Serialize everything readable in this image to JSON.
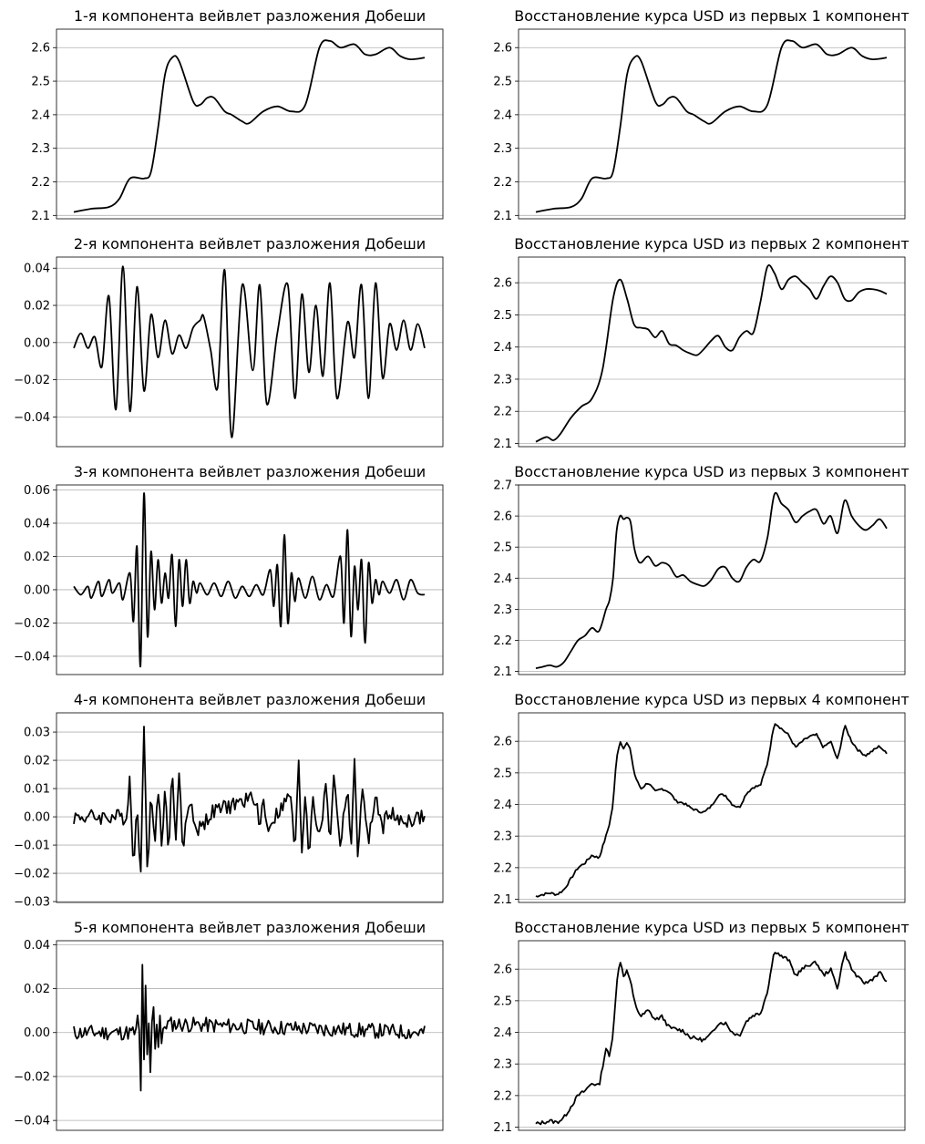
{
  "chart_data": [
    {
      "type": "line",
      "title": "1-я компонента вейвлет разложения Добеши",
      "ylim": [
        2.09,
        2.655
      ],
      "yticks": [
        2.1,
        2.2,
        2.3,
        2.4,
        2.5,
        2.6
      ],
      "ytick_labels": [
        "2.1",
        "2.2",
        "2.3",
        "2.4",
        "2.5",
        "2.6"
      ],
      "grid": "y",
      "x_ticks": "none",
      "noise": 0,
      "x": [
        0,
        5,
        10,
        13,
        16,
        20,
        22,
        24,
        26,
        28,
        30,
        34,
        36,
        38,
        40,
        43,
        45,
        48,
        50,
        54,
        58,
        62,
        66,
        70,
        73,
        76,
        80,
        83,
        86,
        90,
        93,
        96,
        100
      ],
      "y": [
        2.11,
        2.12,
        2.125,
        2.15,
        2.21,
        2.21,
        2.23,
        2.36,
        2.52,
        2.57,
        2.56,
        2.44,
        2.43,
        2.45,
        2.45,
        2.41,
        2.4,
        2.38,
        2.375,
        2.41,
        2.425,
        2.41,
        2.43,
        2.6,
        2.62,
        2.6,
        2.61,
        2.58,
        2.58,
        2.6,
        2.575,
        2.565,
        2.57
      ]
    },
    {
      "type": "line",
      "title": "Восстановление курса USD из первых 1 компонент",
      "ylim": [
        2.09,
        2.655
      ],
      "yticks": [
        2.1,
        2.2,
        2.3,
        2.4,
        2.5,
        2.6
      ],
      "ytick_labels": [
        "2.1",
        "2.2",
        "2.3",
        "2.4",
        "2.5",
        "2.6"
      ],
      "grid": "y",
      "x_ticks": "none",
      "noise": 0,
      "x": [
        0,
        5,
        10,
        13,
        16,
        20,
        22,
        24,
        26,
        28,
        30,
        34,
        36,
        38,
        40,
        43,
        45,
        48,
        50,
        54,
        58,
        62,
        66,
        70,
        73,
        76,
        80,
        83,
        86,
        90,
        93,
        96,
        100
      ],
      "y": [
        2.11,
        2.12,
        2.125,
        2.15,
        2.21,
        2.21,
        2.23,
        2.36,
        2.52,
        2.57,
        2.56,
        2.44,
        2.43,
        2.45,
        2.45,
        2.41,
        2.4,
        2.38,
        2.375,
        2.41,
        2.425,
        2.41,
        2.43,
        2.6,
        2.62,
        2.6,
        2.61,
        2.58,
        2.58,
        2.6,
        2.575,
        2.565,
        2.57
      ]
    },
    {
      "type": "line",
      "title": "2-я компонента вейвлет разложения Добеши",
      "ylim": [
        -0.056,
        0.046
      ],
      "yticks": [
        -0.04,
        -0.02,
        0.0,
        0.02,
        0.04
      ],
      "ytick_labels": [
        "−0.04",
        "−0.02",
        "0.00",
        "0.02",
        "0.04"
      ],
      "grid": "y",
      "x_ticks": "none",
      "noise": 0,
      "x": [
        0,
        2,
        4,
        6,
        8,
        10,
        12,
        14,
        16,
        18,
        20,
        22,
        24,
        26,
        28,
        30,
        32,
        34,
        36,
        37,
        39,
        41,
        43,
        45,
        48,
        51,
        53,
        55,
        58,
        61,
        63,
        65,
        67,
        69,
        71,
        73,
        75,
        78,
        80,
        82,
        84,
        86,
        88,
        90,
        92,
        94,
        96,
        98,
        100
      ],
      "y": [
        -0.003,
        0.005,
        -0.003,
        0.003,
        -0.013,
        0.025,
        -0.036,
        0.041,
        -0.037,
        0.03,
        -0.026,
        0.015,
        -0.008,
        0.012,
        -0.006,
        0.004,
        -0.003,
        0.008,
        0.012,
        0.014,
        -0.004,
        -0.024,
        0.039,
        -0.051,
        0.031,
        -0.015,
        0.031,
        -0.033,
        0.005,
        0.031,
        -0.03,
        0.026,
        -0.016,
        0.02,
        -0.018,
        0.032,
        -0.03,
        0.011,
        -0.008,
        0.031,
        -0.03,
        0.032,
        -0.019,
        0.01,
        -0.004,
        0.012,
        -0.004,
        0.01,
        -0.003
      ]
    },
    {
      "type": "line",
      "title": "Восстановление курса USD из первых 2 компонент",
      "ylim": [
        2.09,
        2.68
      ],
      "yticks": [
        2.1,
        2.2,
        2.3,
        2.4,
        2.5,
        2.6
      ],
      "ytick_labels": [
        "2.1",
        "2.2",
        "2.3",
        "2.4",
        "2.5",
        "2.6"
      ],
      "grid": "y",
      "x_ticks": "none",
      "noise": 0,
      "x": [
        0,
        3,
        5,
        7,
        10,
        13,
        16,
        19,
        22,
        24,
        26,
        28,
        30,
        32,
        34,
        36,
        38,
        40,
        42,
        44,
        46,
        48,
        50,
        52,
        54,
        56,
        58,
        60,
        62,
        64,
        66,
        68,
        70,
        72,
        74,
        76,
        78,
        80,
        82,
        84,
        86,
        88,
        90,
        92,
        94,
        96,
        98,
        100
      ],
      "y": [
        2.105,
        2.12,
        2.11,
        2.13,
        2.18,
        2.215,
        2.24,
        2.33,
        2.55,
        2.61,
        2.55,
        2.47,
        2.46,
        2.455,
        2.43,
        2.45,
        2.41,
        2.405,
        2.39,
        2.38,
        2.375,
        2.395,
        2.42,
        2.435,
        2.4,
        2.39,
        2.43,
        2.45,
        2.445,
        2.54,
        2.65,
        2.63,
        2.58,
        2.61,
        2.62,
        2.6,
        2.58,
        2.55,
        2.59,
        2.62,
        2.6,
        2.55,
        2.545,
        2.57,
        2.58,
        2.58,
        2.575,
        2.565
      ]
    },
    {
      "type": "line",
      "title": "3-я компонента вейвлет разложения Добеши",
      "ylim": [
        -0.051,
        0.063
      ],
      "yticks": [
        -0.04,
        -0.02,
        0.0,
        0.02,
        0.04,
        0.06
      ],
      "ytick_labels": [
        "−0.04",
        "−0.02",
        "0.00",
        "0.02",
        "0.04",
        "0.06"
      ],
      "grid": "y",
      "x_ticks": "none",
      "noise": 0,
      "x": [
        0,
        2,
        4,
        5,
        7,
        8,
        10,
        11,
        13,
        14,
        16,
        17,
        18,
        19,
        20,
        21,
        22,
        23,
        24,
        25,
        26,
        27,
        28,
        29,
        30,
        31,
        32,
        33,
        34,
        35,
        36,
        38,
        40,
        42,
        44,
        46,
        48,
        50,
        52,
        54,
        56,
        57,
        58,
        59,
        60,
        61,
        62,
        63,
        64,
        66,
        68,
        70,
        72,
        74,
        76,
        77,
        78,
        79,
        80,
        81,
        82,
        83,
        84,
        85,
        86,
        87,
        88,
        90,
        92,
        94,
        96,
        98,
        100
      ],
      "y": [
        0.002,
        -0.003,
        0.002,
        -0.005,
        0.005,
        -0.004,
        0.006,
        -0.002,
        0.004,
        -0.006,
        0.01,
        -0.019,
        0.026,
        -0.046,
        0.058,
        -0.028,
        0.023,
        -0.012,
        0.018,
        -0.008,
        0.01,
        -0.005,
        0.021,
        -0.022,
        0.018,
        -0.01,
        0.018,
        -0.008,
        0.005,
        -0.002,
        0.004,
        -0.003,
        0.004,
        -0.004,
        0.005,
        -0.005,
        0.002,
        -0.004,
        0.003,
        -0.003,
        0.012,
        -0.01,
        0.015,
        -0.022,
        0.033,
        -0.02,
        0.01,
        -0.007,
        0.007,
        -0.005,
        0.008,
        -0.006,
        0.003,
        -0.004,
        0.02,
        -0.02,
        0.036,
        -0.028,
        0.014,
        -0.012,
        0.018,
        -0.032,
        0.016,
        -0.008,
        0.006,
        -0.003,
        0.005,
        -0.002,
        0.006,
        -0.006,
        0.006,
        -0.002,
        -0.003
      ]
    },
    {
      "type": "line",
      "title": "Восстановление курса USD из первых 3 компонент",
      "ylim": [
        2.09,
        2.7
      ],
      "yticks": [
        2.1,
        2.2,
        2.3,
        2.4,
        2.5,
        2.6,
        2.7
      ],
      "ytick_labels": [
        "2.1",
        "2.2",
        "2.3",
        "2.4",
        "2.5",
        "2.6",
        "2.7"
      ],
      "grid": "y",
      "x_ticks": "none",
      "noise": 0,
      "x": [
        0,
        2,
        4,
        6,
        8,
        10,
        12,
        14,
        16,
        18,
        20,
        21,
        22,
        23,
        24,
        25,
        26,
        27,
        28,
        29,
        30,
        32,
        34,
        36,
        38,
        40,
        42,
        44,
        46,
        48,
        50,
        52,
        54,
        56,
        58,
        60,
        62,
        64,
        66,
        68,
        70,
        72,
        74,
        76,
        78,
        80,
        82,
        84,
        86,
        88,
        90,
        92,
        94,
        96,
        98,
        100
      ],
      "y": [
        2.11,
        2.115,
        2.12,
        2.115,
        2.13,
        2.165,
        2.2,
        2.215,
        2.24,
        2.23,
        2.3,
        2.33,
        2.4,
        2.55,
        2.6,
        2.59,
        2.595,
        2.58,
        2.5,
        2.46,
        2.45,
        2.47,
        2.44,
        2.45,
        2.44,
        2.405,
        2.41,
        2.39,
        2.38,
        2.375,
        2.395,
        2.43,
        2.435,
        2.4,
        2.39,
        2.435,
        2.46,
        2.455,
        2.53,
        2.67,
        2.64,
        2.62,
        2.58,
        2.6,
        2.615,
        2.62,
        2.575,
        2.6,
        2.545,
        2.65,
        2.6,
        2.57,
        2.555,
        2.57,
        2.59,
        2.56
      ]
    },
    {
      "type": "line",
      "title": "4-я компонента вейвлет разложения Добеши",
      "ylim": [
        -0.0303,
        0.0368
      ],
      "yticks": [
        -0.03,
        -0.02,
        -0.01,
        0.0,
        0.01,
        0.02,
        0.03
      ],
      "ytick_labels": [
        "−0.03",
        "−0.02",
        "−0.01",
        "0.00",
        "0.01",
        "0.02",
        "0.03"
      ],
      "grid": "y",
      "x_ticks": "none",
      "noise": 0.0028,
      "seed": 4,
      "x": [
        0,
        15,
        16,
        17,
        18,
        19,
        20,
        21,
        22,
        23,
        24,
        25,
        26,
        27,
        28,
        29,
        30,
        31,
        33,
        35,
        40,
        52,
        53,
        54,
        55,
        62,
        63,
        64,
        65,
        66,
        67,
        68,
        70,
        72,
        73,
        74,
        76,
        78,
        79,
        80,
        81,
        82,
        84,
        86,
        88,
        90,
        92,
        100
      ],
      "y": [
        0,
        0,
        0.015,
        -0.021,
        0.01,
        -0.027,
        0.034,
        -0.02,
        0.01,
        -0.012,
        0.012,
        -0.01,
        0.01,
        -0.012,
        0.016,
        -0.008,
        0.016,
        -0.012,
        0.007,
        -0.005,
        0.002,
        0.007,
        -0.006,
        0.008,
        -0.004,
        0.008,
        -0.017,
        0.021,
        -0.012,
        0.01,
        -0.015,
        0.008,
        -0.008,
        0.012,
        -0.01,
        0.015,
        -0.01,
        0.012,
        -0.012,
        0.018,
        -0.015,
        0.01,
        -0.008,
        0.006,
        -0.004,
        0.003,
        -0.002,
        0
      ]
    },
    {
      "type": "line",
      "title": "Восстановление курса USD из первых 4 компонент",
      "ylim": [
        2.09,
        2.69
      ],
      "yticks": [
        2.1,
        2.2,
        2.3,
        2.4,
        2.5,
        2.6
      ],
      "ytick_labels": [
        "2.1",
        "2.2",
        "2.3",
        "2.4",
        "2.5",
        "2.6"
      ],
      "grid": "y",
      "x_ticks": "none",
      "noise": 0.004,
      "seed": 7,
      "x": [
        0,
        2,
        4,
        6,
        8,
        10,
        12,
        14,
        16,
        18,
        20,
        21,
        22,
        23,
        24,
        25,
        26,
        27,
        28,
        29,
        30,
        32,
        34,
        36,
        38,
        40,
        42,
        44,
        46,
        48,
        50,
        52,
        54,
        56,
        58,
        60,
        62,
        64,
        66,
        68,
        70,
        72,
        74,
        76,
        78,
        80,
        82,
        84,
        86,
        88,
        90,
        92,
        94,
        96,
        98,
        100
      ],
      "y": [
        2.11,
        2.115,
        2.12,
        2.115,
        2.13,
        2.165,
        2.2,
        2.215,
        2.24,
        2.23,
        2.3,
        2.34,
        2.4,
        2.55,
        2.6,
        2.58,
        2.595,
        2.57,
        2.5,
        2.47,
        2.45,
        2.47,
        2.44,
        2.45,
        2.44,
        2.41,
        2.405,
        2.39,
        2.38,
        2.375,
        2.395,
        2.43,
        2.43,
        2.4,
        2.39,
        2.435,
        2.455,
        2.46,
        2.53,
        2.66,
        2.64,
        2.62,
        2.58,
        2.6,
        2.615,
        2.62,
        2.58,
        2.6,
        2.54,
        2.65,
        2.6,
        2.57,
        2.555,
        2.57,
        2.585,
        2.56
      ]
    },
    {
      "type": "line",
      "title": "5-я компонента вейвлет разложения Добеши",
      "ylim": [
        -0.0445,
        0.0418
      ],
      "yticks": [
        -0.04,
        -0.02,
        0.0,
        0.02,
        0.04
      ],
      "ytick_labels": [
        "−0.04",
        "−0.02",
        "0.00",
        "0.02",
        "0.04"
      ],
      "grid": "y",
      "x_ticks": "none",
      "noise": 0.0035,
      "seed": 11,
      "x": [
        0,
        18,
        18.5,
        19,
        19.5,
        20,
        20.5,
        21,
        21.5,
        22,
        22.5,
        23,
        23.5,
        24,
        24.5,
        25,
        26,
        100
      ],
      "y": [
        0,
        0,
        0.016,
        -0.042,
        0.037,
        -0.015,
        0.023,
        -0.02,
        0.012,
        -0.035,
        0.035,
        -0.013,
        0.008,
        -0.008,
        0.01,
        -0.005,
        0.004,
        0
      ]
    },
    {
      "type": "line",
      "title": "Восстановление курса USD из первых 5 компонент",
      "ylim": [
        2.09,
        2.69
      ],
      "yticks": [
        2.1,
        2.2,
        2.3,
        2.4,
        2.5,
        2.6
      ],
      "ytick_labels": [
        "2.1",
        "2.2",
        "2.3",
        "2.4",
        "2.5",
        "2.6"
      ],
      "grid": "y",
      "x_ticks": "none",
      "noise": 0.006,
      "seed": 13,
      "x": [
        0,
        2,
        4,
        6,
        8,
        10,
        12,
        14,
        16,
        18,
        20,
        21,
        22,
        23,
        24,
        25,
        26,
        27,
        28,
        29,
        30,
        32,
        34,
        36,
        38,
        40,
        42,
        44,
        46,
        48,
        50,
        52,
        54,
        56,
        58,
        60,
        62,
        64,
        66,
        68,
        70,
        72,
        74,
        76,
        78,
        80,
        82,
        84,
        86,
        88,
        90,
        92,
        94,
        96,
        98,
        100
      ],
      "y": [
        2.11,
        2.115,
        2.12,
        2.115,
        2.13,
        2.165,
        2.2,
        2.215,
        2.24,
        2.23,
        2.35,
        2.32,
        2.4,
        2.55,
        2.63,
        2.58,
        2.595,
        2.56,
        2.5,
        2.47,
        2.45,
        2.47,
        2.44,
        2.45,
        2.415,
        2.41,
        2.405,
        2.385,
        2.38,
        2.375,
        2.395,
        2.43,
        2.43,
        2.4,
        2.39,
        2.435,
        2.455,
        2.46,
        2.53,
        2.66,
        2.64,
        2.63,
        2.58,
        2.6,
        2.615,
        2.62,
        2.58,
        2.6,
        2.54,
        2.655,
        2.6,
        2.57,
        2.555,
        2.57,
        2.59,
        2.56
      ]
    }
  ]
}
